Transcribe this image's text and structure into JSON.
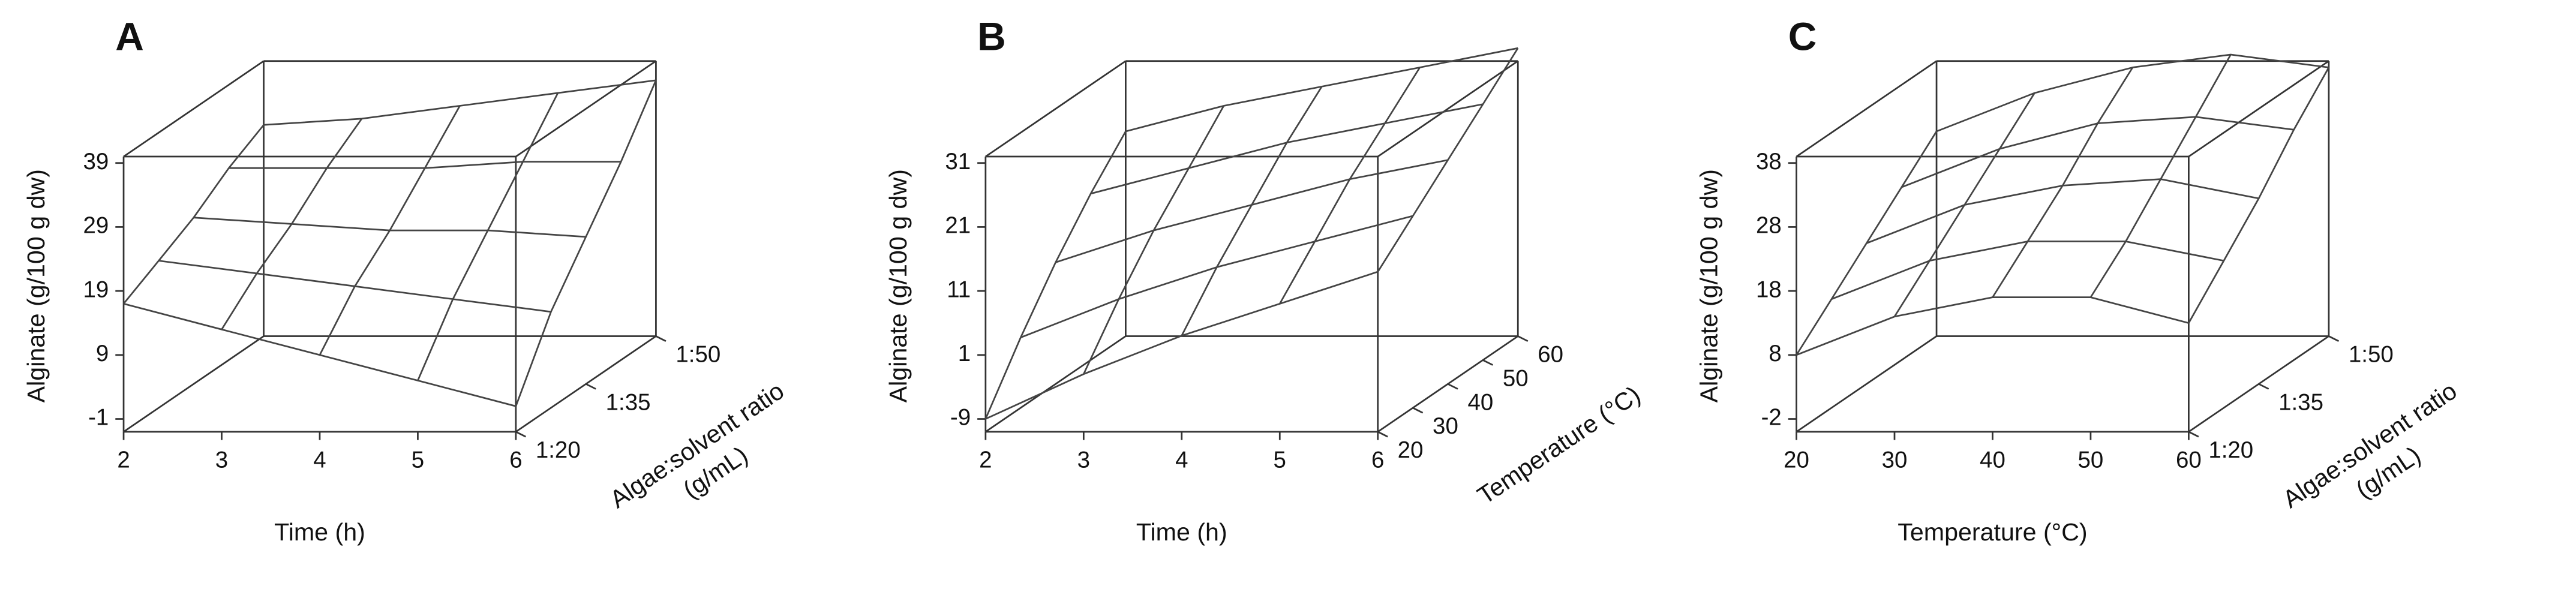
{
  "chart_data": [
    {
      "type": "surface",
      "title": "A",
      "zlabel": "Alginate (g/100 g dw)",
      "xlabel": "Time (h)",
      "ylabel": [
        "Algae:solvent ratio",
        "(g/mL)"
      ],
      "xlim": [
        2,
        6
      ],
      "ylim": [
        20,
        50
      ],
      "zlim": [
        -3,
        40
      ],
      "xticks": [
        2,
        3,
        4,
        5,
        6
      ],
      "yticks": [
        {
          "value": 20,
          "label": "1:20"
        },
        {
          "value": 35,
          "label": "1:35"
        },
        {
          "value": 50,
          "label": "1:50"
        }
      ],
      "zticks": [
        -1,
        9,
        19,
        29,
        39
      ],
      "x": [
        2,
        3,
        4,
        5,
        6
      ],
      "y": [
        20,
        27.5,
        35,
        42.5,
        50
      ],
      "z": [
        [
          17,
          13,
          9,
          5,
          1
        ],
        [
          20,
          18,
          16,
          14,
          12
        ],
        [
          23,
          22,
          21,
          21,
          20
        ],
        [
          27,
          27,
          27,
          28,
          28
        ],
        [
          30,
          31,
          33,
          35,
          37
        ]
      ]
    },
    {
      "type": "surface",
      "title": "B",
      "zlabel": "Alginate (g/100 g dw)",
      "xlabel": "Time (h)",
      "ylabel": [
        "Temperature (°C)"
      ],
      "xlim": [
        2,
        6
      ],
      "ylim": [
        20,
        60
      ],
      "zlim": [
        -11,
        32
      ],
      "xticks": [
        2,
        3,
        4,
        5,
        6
      ],
      "yticks": [
        20,
        30,
        40,
        50,
        60
      ],
      "zticks": [
        -9,
        1,
        11,
        21,
        31
      ],
      "x": [
        2,
        3,
        4,
        5,
        6
      ],
      "y": [
        20,
        30,
        40,
        50,
        60
      ],
      "z": [
        [
          -9,
          -2,
          4,
          9,
          14
        ],
        [
          0,
          6,
          11,
          15,
          19
        ],
        [
          8,
          13,
          17,
          21,
          24
        ],
        [
          15,
          19,
          23,
          26,
          29
        ],
        [
          21,
          25,
          28,
          31,
          34
        ]
      ]
    },
    {
      "type": "surface",
      "title": "C",
      "zlabel": "Alginate (g/100 g dw)",
      "xlabel": "Temperature (°C)",
      "ylabel": [
        "Algae:solvent ratio",
        "(g/mL)"
      ],
      "xlim": [
        20,
        60
      ],
      "ylim": [
        20,
        50
      ],
      "zlim": [
        -4,
        39
      ],
      "xticks": [
        20,
        30,
        40,
        50,
        60
      ],
      "yticks": [
        {
          "value": 20,
          "label": "1:20"
        },
        {
          "value": 35,
          "label": "1:35"
        },
        {
          "value": 50,
          "label": "1:50"
        }
      ],
      "zticks": [
        -2,
        8,
        18,
        28,
        38
      ],
      "x": [
        20,
        30,
        40,
        50,
        60
      ],
      "y": [
        20,
        27.5,
        35,
        42.5,
        50
      ],
      "z": [
        [
          8,
          14,
          17,
          17,
          13
        ],
        [
          13,
          19,
          22,
          22,
          19
        ],
        [
          18,
          24,
          27,
          28,
          25
        ],
        [
          23,
          29,
          33,
          34,
          32
        ],
        [
          28,
          34,
          38,
          40,
          38
        ]
      ]
    }
  ]
}
